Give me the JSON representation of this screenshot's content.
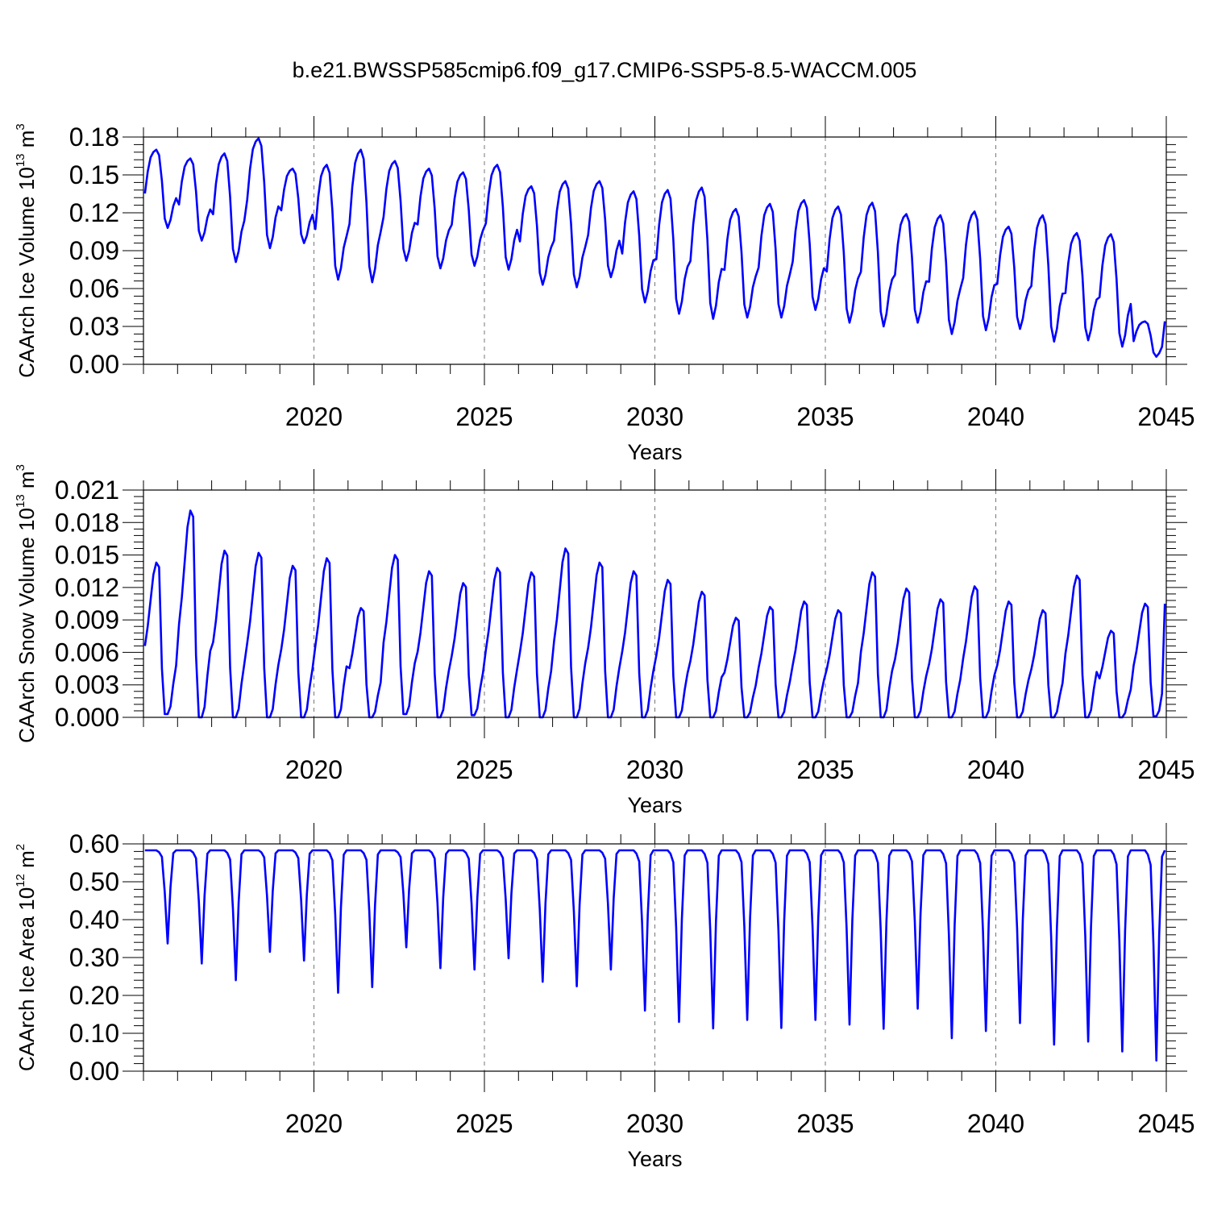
{
  "title": "b.e21.BWSSP585cmip6.f09_g17.CMIP6-SSP5-8.5-WACCM.005",
  "colors": {
    "series": "#0000ff",
    "axis": "#000000",
    "gridline": "#777777"
  },
  "chart_data": [
    {
      "type": "line",
      "ylabel": {
        "prefix": "CAArch Ice Volume 10",
        "exp": "13",
        "unit": " m",
        "unit_exp": "3"
      },
      "xlabel": "Years",
      "xlim": [
        2015.0,
        2045.0
      ],
      "ylim": [
        0.0,
        0.18
      ],
      "yticks": [
        "0.00",
        "0.03",
        "0.06",
        "0.09",
        "0.12",
        "0.15",
        "0.18"
      ],
      "xticks": [
        "2020",
        "2025",
        "2030",
        "2035",
        "2040",
        "2045"
      ],
      "grid": "dashed vertical lines at 5-year ticks",
      "seasonal_model": {
        "start_year": 2015,
        "max": [
          0.17,
          0.163,
          0.167,
          0.179,
          0.155,
          0.158,
          0.17,
          0.161,
          0.155,
          0.152,
          0.158,
          0.141,
          0.145,
          0.145,
          0.137,
          0.138,
          0.14,
          0.123,
          0.127,
          0.13,
          0.125,
          0.128,
          0.119,
          0.118,
          0.121,
          0.109,
          0.118,
          0.104,
          0.103,
          0.034
        ],
        "min": [
          0.108,
          0.098,
          0.081,
          0.092,
          0.096,
          0.067,
          0.065,
          0.082,
          0.076,
          0.078,
          0.075,
          0.063,
          0.061,
          0.069,
          0.049,
          0.04,
          0.036,
          0.037,
          0.037,
          0.043,
          0.033,
          0.03,
          0.033,
          0.024,
          0.027,
          0.028,
          0.018,
          0.019,
          0.014,
          0.006
        ]
      }
    },
    {
      "type": "line",
      "ylabel": {
        "prefix": "CAArch Snow Volume 10",
        "exp": "13",
        "unit": " m",
        "unit_exp": "3"
      },
      "xlabel": "Years",
      "xlim": [
        2015.0,
        2045.0
      ],
      "ylim": [
        0.0,
        0.021
      ],
      "yticks": [
        "0.000",
        "0.003",
        "0.006",
        "0.009",
        "0.012",
        "0.015",
        "0.018",
        "0.021"
      ],
      "xticks": [
        "2020",
        "2025",
        "2030",
        "2035",
        "2040",
        "2045"
      ],
      "grid": "dashed vertical lines at 5-year ticks",
      "seasonal_model": {
        "start_year": 2015,
        "max": [
          0.0143,
          0.0191,
          0.0154,
          0.0152,
          0.014,
          0.0147,
          0.0101,
          0.015,
          0.0135,
          0.0124,
          0.0138,
          0.0134,
          0.0156,
          0.0143,
          0.0135,
          0.0127,
          0.0116,
          0.0092,
          0.0102,
          0.0107,
          0.0099,
          0.0134,
          0.0119,
          0.0109,
          0.0121,
          0.0107,
          0.0099,
          0.0131,
          0.008,
          0.0105
        ],
        "min": [
          0.0003,
          0.0,
          0.0,
          0.0,
          0.0,
          0.0,
          0.0,
          0.0003,
          0.0,
          0.0002,
          0.0,
          0.0,
          0.0,
          0.0,
          0.0,
          0.0,
          0.0,
          0.0,
          0.0,
          0.0,
          0.0,
          0.0,
          0.0,
          0.0,
          0.0,
          0.0,
          0.0,
          0.0,
          0.0,
          0.0001
        ]
      }
    },
    {
      "type": "line",
      "ylabel": {
        "prefix": "CAArch Ice Area 10",
        "exp": "12",
        "unit": " m",
        "unit_exp": "2"
      },
      "xlabel": "Years",
      "xlim": [
        2015.0,
        2045.0
      ],
      "ylim": [
        0.0,
        0.6
      ],
      "yticks": [
        "0.00",
        "0.10",
        "0.20",
        "0.30",
        "0.40",
        "0.50",
        "0.60"
      ],
      "xticks": [
        "2020",
        "2025",
        "2030",
        "2035",
        "2040",
        "2045"
      ],
      "grid": "dashed vertical lines at 5-year ticks",
      "seasonal_model": {
        "start_year": 2015,
        "max": [
          0.583,
          0.583,
          0.583,
          0.583,
          0.583,
          0.583,
          0.583,
          0.583,
          0.583,
          0.583,
          0.583,
          0.583,
          0.583,
          0.583,
          0.583,
          0.583,
          0.583,
          0.583,
          0.583,
          0.583,
          0.583,
          0.583,
          0.583,
          0.583,
          0.583,
          0.583,
          0.583,
          0.583,
          0.583,
          0.583
        ],
        "min": [
          0.337,
          0.284,
          0.24,
          0.315,
          0.292,
          0.207,
          0.222,
          0.327,
          0.272,
          0.268,
          0.298,
          0.236,
          0.224,
          0.268,
          0.16,
          0.13,
          0.113,
          0.135,
          0.114,
          0.135,
          0.123,
          0.112,
          0.165,
          0.087,
          0.106,
          0.127,
          0.07,
          0.078,
          0.052,
          0.028
        ]
      }
    }
  ]
}
